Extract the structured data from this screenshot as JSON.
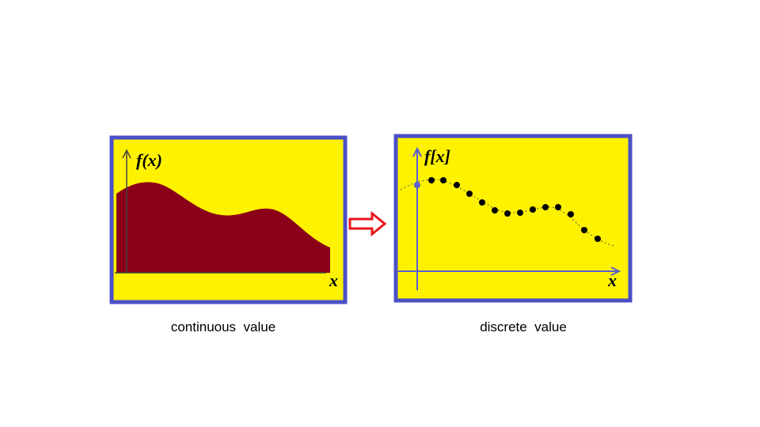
{
  "left_panel": {
    "y_label": "f(x)",
    "x_label": "x",
    "caption": "continuous  value"
  },
  "right_panel": {
    "y_label": "f[x]",
    "x_label": "x",
    "caption": "discrete  value"
  }
}
